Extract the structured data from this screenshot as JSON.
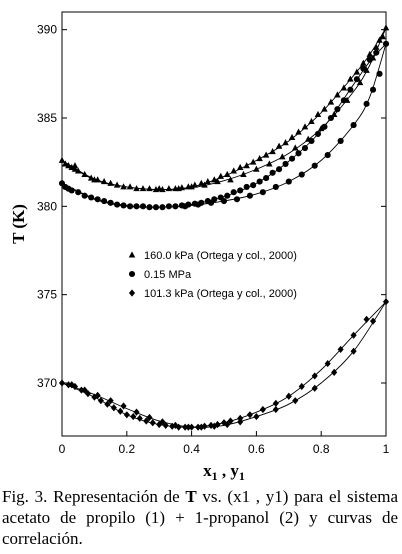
{
  "chart_data": {
    "type": "scatter",
    "xlabel": "x1 , y1",
    "ylabel": "T (K)",
    "xlim": [
      0,
      1
    ],
    "ylim": [
      367,
      391
    ],
    "xticks": [
      "0",
      "0.2",
      "0.4",
      "0.6",
      "0.8",
      "1"
    ],
    "yticks": [
      "370",
      "375",
      "380",
      "385",
      "390"
    ],
    "legend_position": "center-left",
    "series": [
      {
        "name": "160.0 kPa (Ortega y col., 2000)",
        "marker": "triangle",
        "points": [
          [
            0.0,
            382.6
          ],
          [
            0.01,
            382.4
          ],
          [
            0.02,
            382.3
          ],
          [
            0.03,
            382.2
          ],
          [
            0.04,
            382.1
          ],
          [
            0.05,
            382.0
          ],
          [
            0.07,
            381.8
          ],
          [
            0.09,
            381.6
          ],
          [
            0.11,
            381.5
          ],
          [
            0.13,
            381.4
          ],
          [
            0.15,
            381.3
          ],
          [
            0.17,
            381.2
          ],
          [
            0.19,
            381.1
          ],
          [
            0.21,
            381.1
          ],
          [
            0.23,
            381.0
          ],
          [
            0.25,
            381.0
          ],
          [
            0.27,
            381.0
          ],
          [
            0.29,
            380.95
          ],
          [
            0.31,
            380.95
          ],
          [
            0.33,
            381.0
          ],
          [
            0.35,
            381.0
          ],
          [
            0.37,
            381.05
          ],
          [
            0.39,
            381.1
          ],
          [
            0.41,
            381.2
          ],
          [
            0.43,
            381.3
          ],
          [
            0.45,
            381.4
          ],
          [
            0.47,
            381.5
          ],
          [
            0.49,
            381.7
          ],
          [
            0.51,
            381.8
          ],
          [
            0.53,
            382.0
          ],
          [
            0.55,
            382.2
          ],
          [
            0.57,
            382.3
          ],
          [
            0.59,
            382.5
          ],
          [
            0.61,
            382.7
          ],
          [
            0.63,
            382.9
          ],
          [
            0.65,
            383.1
          ],
          [
            0.67,
            383.4
          ],
          [
            0.69,
            383.6
          ],
          [
            0.71,
            383.9
          ],
          [
            0.73,
            384.2
          ],
          [
            0.75,
            384.5
          ],
          [
            0.77,
            384.8
          ],
          [
            0.79,
            385.2
          ],
          [
            0.81,
            385.5
          ],
          [
            0.83,
            385.9
          ],
          [
            0.85,
            386.3
          ],
          [
            0.87,
            386.7
          ],
          [
            0.89,
            387.2
          ],
          [
            0.91,
            387.6
          ],
          [
            0.93,
            388.1
          ],
          [
            0.95,
            388.6
          ],
          [
            0.97,
            389.0
          ],
          [
            0.98,
            389.4
          ],
          [
            1.0,
            390.1
          ],
          [
            0.04,
            382.3
          ],
          [
            0.1,
            381.5
          ],
          [
            0.3,
            381.0
          ],
          [
            0.36,
            381.0
          ],
          [
            0.4,
            381.1
          ],
          [
            0.44,
            381.2
          ],
          [
            0.48,
            381.4
          ],
          [
            0.52,
            381.5
          ],
          [
            0.56,
            381.8
          ],
          [
            0.6,
            382.1
          ],
          [
            0.64,
            382.4
          ],
          [
            0.68,
            382.8
          ],
          [
            0.72,
            383.3
          ],
          [
            0.76,
            383.8
          ],
          [
            0.8,
            384.4
          ],
          [
            0.84,
            385.2
          ],
          [
            0.88,
            386.0
          ],
          [
            0.92,
            387.0
          ],
          [
            0.94,
            387.7
          ],
          [
            0.96,
            388.4
          ],
          [
            0.99,
            389.6
          ]
        ]
      },
      {
        "name": "0.15 MPa",
        "marker": "circle",
        "points": [
          [
            0.0,
            381.3
          ],
          [
            0.01,
            381.1
          ],
          [
            0.02,
            381.0
          ],
          [
            0.03,
            380.9
          ],
          [
            0.05,
            380.8
          ],
          [
            0.07,
            380.6
          ],
          [
            0.09,
            380.5
          ],
          [
            0.11,
            380.4
          ],
          [
            0.13,
            380.3
          ],
          [
            0.15,
            380.2
          ],
          [
            0.17,
            380.1
          ],
          [
            0.19,
            380.05
          ],
          [
            0.21,
            380.0
          ],
          [
            0.23,
            380.0
          ],
          [
            0.25,
            380.0
          ],
          [
            0.27,
            379.95
          ],
          [
            0.29,
            379.95
          ],
          [
            0.31,
            379.95
          ],
          [
            0.33,
            380.0
          ],
          [
            0.35,
            380.0
          ],
          [
            0.37,
            380.05
          ],
          [
            0.39,
            380.1
          ],
          [
            0.41,
            380.15
          ],
          [
            0.43,
            380.2
          ],
          [
            0.45,
            380.3
          ],
          [
            0.47,
            380.4
          ],
          [
            0.49,
            380.5
          ],
          [
            0.51,
            380.6
          ],
          [
            0.53,
            380.8
          ],
          [
            0.55,
            380.9
          ],
          [
            0.57,
            381.1
          ],
          [
            0.59,
            381.2
          ],
          [
            0.61,
            381.4
          ],
          [
            0.63,
            381.6
          ],
          [
            0.65,
            381.9
          ],
          [
            0.67,
            382.1
          ],
          [
            0.69,
            382.4
          ],
          [
            0.71,
            382.7
          ],
          [
            0.73,
            383.0
          ],
          [
            0.75,
            383.3
          ],
          [
            0.77,
            383.7
          ],
          [
            0.79,
            384.1
          ],
          [
            0.81,
            384.5
          ],
          [
            0.83,
            385.0
          ],
          [
            0.85,
            385.5
          ],
          [
            0.87,
            386.0
          ],
          [
            0.89,
            386.6
          ],
          [
            0.91,
            387.2
          ],
          [
            0.93,
            387.8
          ],
          [
            0.95,
            388.3
          ],
          [
            0.97,
            388.7
          ],
          [
            1.0,
            389.2
          ],
          [
            0.38,
            380.0
          ],
          [
            0.42,
            380.1
          ],
          [
            0.46,
            380.2
          ],
          [
            0.5,
            380.3
          ],
          [
            0.54,
            380.4
          ],
          [
            0.58,
            380.6
          ],
          [
            0.62,
            380.8
          ],
          [
            0.66,
            381.1
          ],
          [
            0.7,
            381.4
          ],
          [
            0.74,
            381.8
          ],
          [
            0.78,
            382.3
          ],
          [
            0.82,
            382.9
          ],
          [
            0.86,
            383.7
          ],
          [
            0.9,
            384.6
          ],
          [
            0.94,
            385.8
          ],
          [
            0.96,
            386.6
          ],
          [
            0.98,
            387.5
          ]
        ]
      },
      {
        "name": "101.3 kPa (Ortega y col., 2000)",
        "marker": "diamond",
        "points": [
          [
            0.0,
            370.0
          ],
          [
            0.02,
            369.9
          ],
          [
            0.04,
            369.8
          ],
          [
            0.06,
            369.6
          ],
          [
            0.08,
            369.4
          ],
          [
            0.1,
            369.2
          ],
          [
            0.12,
            369.0
          ],
          [
            0.14,
            368.8
          ],
          [
            0.16,
            368.6
          ],
          [
            0.18,
            368.4
          ],
          [
            0.2,
            368.2
          ],
          [
            0.22,
            368.1
          ],
          [
            0.24,
            368.0
          ],
          [
            0.26,
            367.85
          ],
          [
            0.28,
            367.75
          ],
          [
            0.3,
            367.65
          ],
          [
            0.32,
            367.6
          ],
          [
            0.34,
            367.55
          ],
          [
            0.36,
            367.5
          ],
          [
            0.38,
            367.5
          ],
          [
            0.4,
            367.5
          ],
          [
            0.42,
            367.5
          ],
          [
            0.44,
            367.55
          ],
          [
            0.46,
            367.6
          ],
          [
            0.48,
            367.65
          ],
          [
            0.5,
            367.75
          ],
          [
            0.52,
            367.85
          ],
          [
            0.55,
            368.0
          ],
          [
            0.58,
            368.2
          ],
          [
            0.62,
            368.5
          ],
          [
            0.66,
            368.85
          ],
          [
            0.7,
            369.25
          ],
          [
            0.74,
            369.8
          ],
          [
            0.78,
            370.4
          ],
          [
            0.82,
            371.1
          ],
          [
            0.86,
            371.9
          ],
          [
            0.9,
            372.7
          ],
          [
            0.94,
            373.6
          ],
          [
            1.0,
            374.6
          ],
          [
            0.03,
            369.9
          ],
          [
            0.07,
            369.6
          ],
          [
            0.11,
            369.3
          ],
          [
            0.15,
            369.0
          ],
          [
            0.19,
            368.7
          ],
          [
            0.23,
            368.35
          ],
          [
            0.27,
            368.05
          ],
          [
            0.31,
            367.8
          ],
          [
            0.35,
            367.6
          ],
          [
            0.39,
            367.5
          ],
          [
            0.43,
            367.5
          ],
          [
            0.47,
            367.55
          ],
          [
            0.51,
            367.65
          ],
          [
            0.55,
            367.8
          ],
          [
            0.6,
            368.1
          ],
          [
            0.66,
            368.5
          ],
          [
            0.72,
            369.0
          ],
          [
            0.78,
            369.7
          ],
          [
            0.84,
            370.6
          ],
          [
            0.9,
            371.8
          ],
          [
            0.96,
            373.5
          ]
        ]
      }
    ],
    "curves": [
      {
        "series": "160.0 kPa (Ortega y col., 2000)",
        "kind": "bubble",
        "points": [
          [
            0.0,
            382.6
          ],
          [
            0.1,
            381.55
          ],
          [
            0.2,
            381.1
          ],
          [
            0.3,
            380.95
          ],
          [
            0.4,
            381.1
          ],
          [
            0.5,
            381.7
          ],
          [
            0.6,
            382.6
          ],
          [
            0.7,
            383.7
          ],
          [
            0.8,
            385.3
          ],
          [
            0.9,
            387.4
          ],
          [
            0.95,
            388.6
          ],
          [
            1.0,
            390.1
          ]
        ]
      },
      {
        "series": "160.0 kPa (Ortega y col., 2000)",
        "kind": "dew",
        "points": [
          [
            0.0,
            382.6
          ],
          [
            0.1,
            381.5
          ],
          [
            0.2,
            381.1
          ],
          [
            0.3,
            380.95
          ],
          [
            0.4,
            381.05
          ],
          [
            0.5,
            381.45
          ],
          [
            0.6,
            382.1
          ],
          [
            0.7,
            383.0
          ],
          [
            0.8,
            384.4
          ],
          [
            0.9,
            386.5
          ],
          [
            0.95,
            388.0
          ],
          [
            1.0,
            390.1
          ]
        ]
      },
      {
        "series": "0.15 MPa",
        "kind": "bubble",
        "points": [
          [
            0.0,
            381.3
          ],
          [
            0.1,
            380.45
          ],
          [
            0.2,
            380.05
          ],
          [
            0.3,
            379.95
          ],
          [
            0.4,
            380.1
          ],
          [
            0.5,
            380.55
          ],
          [
            0.6,
            381.3
          ],
          [
            0.7,
            382.55
          ],
          [
            0.8,
            384.3
          ],
          [
            0.9,
            386.9
          ],
          [
            0.95,
            388.2
          ],
          [
            1.0,
            389.2
          ]
        ]
      },
      {
        "series": "0.15 MPa",
        "kind": "dew",
        "points": [
          [
            0.0,
            381.3
          ],
          [
            0.1,
            380.4
          ],
          [
            0.2,
            380.0
          ],
          [
            0.3,
            379.95
          ],
          [
            0.4,
            380.05
          ],
          [
            0.5,
            380.3
          ],
          [
            0.6,
            380.7
          ],
          [
            0.7,
            381.4
          ],
          [
            0.8,
            382.6
          ],
          [
            0.9,
            384.6
          ],
          [
            0.95,
            386.2
          ],
          [
            1.0,
            389.2
          ]
        ]
      },
      {
        "series": "101.3 kPa (Ortega y col., 2000)",
        "kind": "bubble",
        "points": [
          [
            0.0,
            370.0
          ],
          [
            0.1,
            369.2
          ],
          [
            0.2,
            368.2
          ],
          [
            0.3,
            367.65
          ],
          [
            0.4,
            367.5
          ],
          [
            0.5,
            367.75
          ],
          [
            0.6,
            368.35
          ],
          [
            0.7,
            369.25
          ],
          [
            0.8,
            370.75
          ],
          [
            0.9,
            372.7
          ],
          [
            1.0,
            374.6
          ]
        ]
      },
      {
        "series": "101.3 kPa (Ortega y col., 2000)",
        "kind": "dew",
        "points": [
          [
            0.0,
            370.0
          ],
          [
            0.1,
            369.35
          ],
          [
            0.2,
            368.55
          ],
          [
            0.3,
            367.85
          ],
          [
            0.4,
            367.5
          ],
          [
            0.5,
            367.6
          ],
          [
            0.6,
            368.1
          ],
          [
            0.7,
            368.8
          ],
          [
            0.8,
            370.0
          ],
          [
            0.9,
            371.8
          ],
          [
            1.0,
            374.6
          ]
        ]
      }
    ]
  },
  "caption": {
    "prefix": "Fig.   3.   Representación de ",
    "bold_T": "T",
    "middle": " vs.   (x1 , y1) para el sistema acetato de propilo (1) + 1-propanol (2) y curvas de correlación."
  }
}
